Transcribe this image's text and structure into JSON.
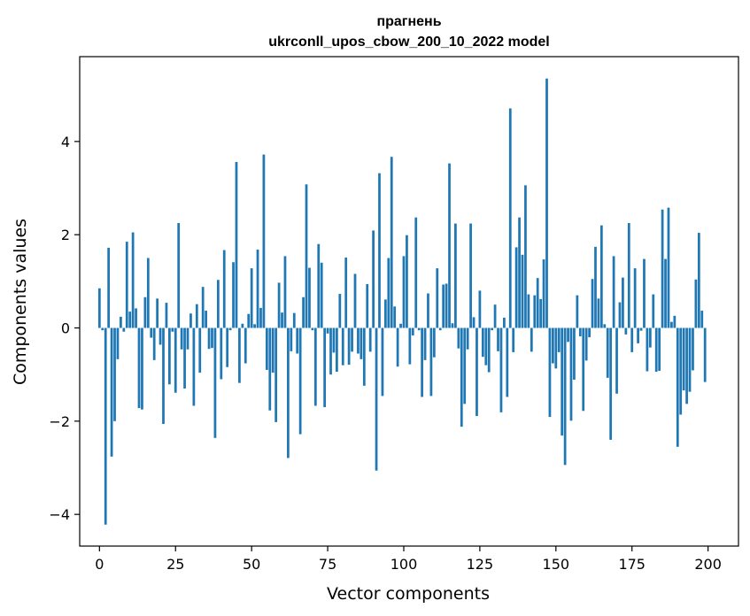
{
  "chart_data": {
    "type": "bar",
    "title": "прагнень",
    "subtitle": "ukrconll_upos_cbow_200_10_2022 model",
    "xlabel": "Vector components",
    "ylabel": "Components values",
    "xlim": [
      -6.5,
      210
    ],
    "ylim": [
      -4.68,
      5.82
    ],
    "xticks": [
      0,
      25,
      50,
      75,
      100,
      125,
      150,
      175,
      200
    ],
    "yticks": [
      -4,
      -2,
      0,
      2,
      4
    ],
    "xtick_labels": [
      "0",
      "25",
      "50",
      "75",
      "100",
      "125",
      "150",
      "175",
      "200"
    ],
    "ytick_labels": [
      "−4",
      "−2",
      "0",
      "2",
      "4"
    ],
    "grid": false,
    "bar_color": "#1f77b4",
    "x": [
      0,
      1,
      2,
      3,
      4,
      5,
      6,
      7,
      8,
      9,
      10,
      11,
      12,
      13,
      14,
      15,
      16,
      17,
      18,
      19,
      20,
      21,
      22,
      23,
      24,
      25,
      26,
      27,
      28,
      29,
      30,
      31,
      32,
      33,
      34,
      35,
      36,
      37,
      38,
      39,
      40,
      41,
      42,
      43,
      44,
      45,
      46,
      47,
      48,
      49,
      50,
      51,
      52,
      53,
      54,
      55,
      56,
      57,
      58,
      59,
      60,
      61,
      62,
      63,
      64,
      65,
      66,
      67,
      68,
      69,
      70,
      71,
      72,
      73,
      74,
      75,
      76,
      77,
      78,
      79,
      80,
      81,
      82,
      83,
      84,
      85,
      86,
      87,
      88,
      89,
      90,
      91,
      92,
      93,
      94,
      95,
      96,
      97,
      98,
      99,
      100,
      101,
      102,
      103,
      104,
      105,
      106,
      107,
      108,
      109,
      110,
      111,
      112,
      113,
      114,
      115,
      116,
      117,
      118,
      119,
      120,
      121,
      122,
      123,
      124,
      125,
      126,
      127,
      128,
      129,
      130,
      131,
      132,
      133,
      134,
      135,
      136,
      137,
      138,
      139,
      140,
      141,
      142,
      143,
      144,
      145,
      146,
      147,
      148,
      149,
      150,
      151,
      152,
      153,
      154,
      155,
      156,
      157,
      158,
      159,
      160,
      161,
      162,
      163,
      164,
      165,
      166,
      167,
      168,
      169,
      170,
      171,
      172,
      173,
      174,
      175,
      176,
      177,
      178,
      179,
      180,
      181,
      182,
      183,
      184,
      185,
      186,
      187,
      188,
      189,
      190,
      191,
      192,
      193,
      194,
      195,
      196,
      197,
      198,
      199
    ],
    "values": [
      0.85,
      -0.05,
      -4.22,
      1.72,
      -2.76,
      -2.0,
      -0.67,
      0.24,
      -0.08,
      1.85,
      0.35,
      2.05,
      0.42,
      -1.72,
      -1.75,
      0.66,
      1.5,
      -0.21,
      -0.69,
      0.63,
      -0.36,
      -2.06,
      0.54,
      -1.21,
      -0.08,
      -1.39,
      2.25,
      -0.46,
      -1.3,
      -0.46,
      0.31,
      -1.67,
      0.51,
      -0.96,
      0.88,
      0.37,
      -0.45,
      -0.43,
      -2.36,
      1.03,
      -1.1,
      1.67,
      -0.84,
      -0.05,
      1.41,
      3.56,
      -1.18,
      0.09,
      -0.76,
      0.3,
      1.28,
      0.08,
      1.68,
      0.43,
      3.72,
      -0.9,
      -1.77,
      -0.96,
      -2.02,
      0.97,
      0.33,
      1.54,
      -2.79,
      -0.5,
      0.32,
      -0.55,
      -2.28,
      0.66,
      3.08,
      1.29,
      -0.05,
      -1.67,
      1.8,
      1.4,
      -1.7,
      -0.12,
      -1.0,
      -0.53,
      -0.94,
      0.73,
      -0.8,
      1.51,
      -0.79,
      -0.51,
      1.16,
      -0.55,
      -0.67,
      -1.24,
      0.94,
      -0.51,
      2.09,
      -3.06,
      3.32,
      -1.46,
      0.61,
      1.5,
      3.67,
      0.46,
      -0.83,
      0.09,
      1.54,
      1.99,
      -0.78,
      -0.16,
      2.37,
      -0.05,
      -1.48,
      -0.69,
      0.74,
      -1.46,
      -0.63,
      1.28,
      -0.05,
      0.93,
      0.95,
      3.53,
      0.1,
      2.24,
      -0.44,
      -2.12,
      -1.63,
      -0.46,
      2.24,
      0.23,
      -1.89,
      0.8,
      -0.62,
      -0.8,
      -0.95,
      -0.05,
      0.5,
      -0.5,
      -1.81,
      0.22,
      -1.48,
      4.71,
      -0.52,
      1.73,
      2.37,
      1.57,
      3.06,
      0.72,
      -0.51,
      0.7,
      1.07,
      0.62,
      1.47,
      5.35,
      -1.91,
      -0.76,
      -0.87,
      -0.52,
      -2.31,
      -2.94,
      -0.3,
      -1.99,
      -1.11,
      0.7,
      -0.18,
      -1.78,
      -0.7,
      -0.2,
      1.05,
      1.74,
      0.63,
      2.2,
      0.08,
      -1.07,
      -2.4,
      1.54,
      -1.41,
      0.55,
      1.08,
      -0.14,
      2.25,
      -0.52,
      1.28,
      -0.33,
      -0.06,
      1.48,
      -0.93,
      -0.42,
      0.72,
      -0.94,
      -0.92,
      2.54,
      1.48,
      2.58,
      0.13,
      0.26,
      -2.55,
      -1.86,
      -1.34,
      -1.63,
      -1.37,
      -0.91,
      1.04,
      2.04,
      0.37,
      -1.16
    ]
  }
}
